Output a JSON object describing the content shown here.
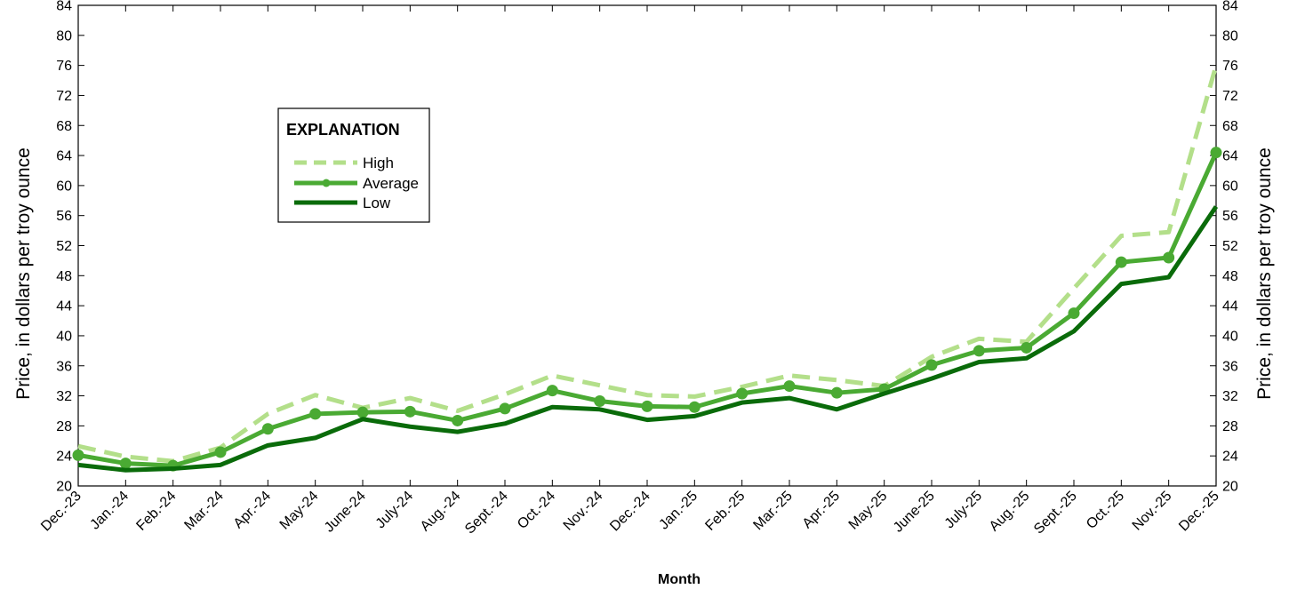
{
  "chart_data": {
    "type": "line",
    "title": "",
    "xlabel": "Month",
    "ylabel_left": "Price, in dollars per troy ounce",
    "ylabel_right": "Price, in dollars per troy ounce",
    "ylim": [
      20,
      84
    ],
    "ytick_step": 4,
    "grid": false,
    "legend_placement": "upper-left",
    "legend_title": "EXPLANATION",
    "categories": [
      "Dec.-23",
      "Jan.-24",
      "Feb.-24",
      "Mar.-24",
      "Apr.-24",
      "May-24",
      "June-24",
      "July-24",
      "Aug.-24",
      "Sept.-24",
      "Oct.-24",
      "Nov.-24",
      "Dec.-24",
      "Jan.-25",
      "Feb.-25",
      "Mar.-25",
      "Apr.-25",
      "May-25",
      "June-25",
      "July-25",
      "Aug.-25",
      "Sept.-25",
      "Oct.-25",
      "Nov.-25",
      "Dec.-25"
    ],
    "series": [
      {
        "name": "High",
        "style": "dashed",
        "color": "#b3df8a",
        "values": [
          25.3,
          23.9,
          23.3,
          25.1,
          29.6,
          32.1,
          30.4,
          31.7,
          30.0,
          32.2,
          34.7,
          33.4,
          32.1,
          31.9,
          33.2,
          34.7,
          34.1,
          33.3,
          37.2,
          39.6,
          39.2,
          46.3,
          53.3,
          53.8,
          76.0
        ]
      },
      {
        "name": "Average",
        "style": "solid-markers",
        "color": "#4aaa33",
        "values": [
          24.1,
          23.0,
          22.7,
          24.5,
          27.6,
          29.6,
          29.8,
          29.9,
          28.7,
          30.3,
          32.7,
          31.3,
          30.6,
          30.5,
          32.3,
          33.3,
          32.4,
          32.9,
          36.1,
          38.0,
          38.4,
          43.0,
          49.8,
          50.4,
          64.4
        ]
      },
      {
        "name": "Low",
        "style": "solid",
        "color": "#0a6b0a",
        "values": [
          22.8,
          22.1,
          22.3,
          22.8,
          25.4,
          26.4,
          28.9,
          27.9,
          27.2,
          28.3,
          30.5,
          30.2,
          28.8,
          29.3,
          31.1,
          31.7,
          30.2,
          32.3,
          34.3,
          36.5,
          37.0,
          40.6,
          46.9,
          47.8,
          57.2
        ]
      }
    ]
  }
}
